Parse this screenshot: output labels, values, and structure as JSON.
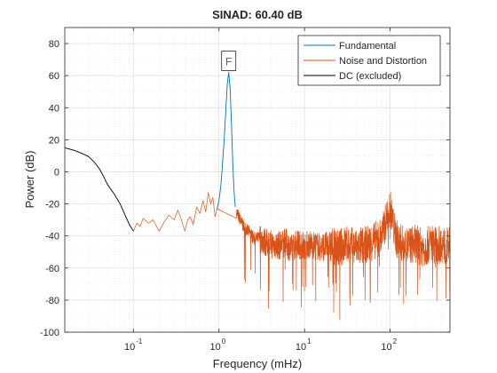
{
  "chart_data": {
    "type": "line",
    "title": "SINAD:  60.40 dB",
    "xlabel": "Frequency (mHz)",
    "ylabel": "Power (dB)",
    "xscale": "log",
    "xlim": [
      0.0158,
      500
    ],
    "ylim": [
      -100,
      90
    ],
    "grid": "on (major and minor)",
    "legend_placement": "top-right",
    "x_ticks": [
      {
        "value": 0.1,
        "base": "10",
        "exp": "-1"
      },
      {
        "value": 1,
        "base": "10",
        "exp": "0"
      },
      {
        "value": 10,
        "base": "10",
        "exp": "1"
      },
      {
        "value": 100,
        "base": "10",
        "exp": "2"
      }
    ],
    "y_ticks": [
      {
        "value": 80,
        "label": "80"
      },
      {
        "value": 60,
        "label": "60"
      },
      {
        "value": 40,
        "label": "40"
      },
      {
        "value": 20,
        "label": "20"
      },
      {
        "value": 0,
        "label": "0"
      },
      {
        "value": -20,
        "label": "-20"
      },
      {
        "value": -40,
        "label": "-40"
      },
      {
        "value": -60,
        "label": "-60"
      },
      {
        "value": -80,
        "label": "-80"
      },
      {
        "value": -100,
        "label": "-100"
      }
    ],
    "series": [
      {
        "name": "Fundamental",
        "color": "#0072BD",
        "x": [
          0.95,
          1.0,
          1.05,
          1.1,
          1.15,
          1.2,
          1.25,
          1.3,
          1.35,
          1.4,
          1.45,
          1.5,
          1.55
        ],
        "y": [
          -23,
          -18,
          -9,
          5,
          20,
          38,
          55,
          62,
          52,
          30,
          5,
          -12,
          -22
        ]
      },
      {
        "name": "Noise and Distortion",
        "color": "#D95319",
        "x": [
          0.1,
          0.11,
          0.12,
          0.13,
          0.15,
          0.17,
          0.2,
          0.23,
          0.26,
          0.3,
          0.33,
          0.36,
          0.4,
          0.43,
          0.46,
          0.5,
          0.55,
          0.6,
          0.65,
          0.7,
          0.75,
          0.8,
          0.85,
          0.9,
          0.95,
          1.6,
          1.8,
          2.0,
          2.3,
          2.6,
          3.0,
          3.5,
          4,
          5,
          6,
          7,
          8,
          10,
          12,
          15,
          20,
          25,
          30,
          40,
          50,
          60,
          70,
          80,
          90,
          100,
          110,
          120,
          140,
          160,
          200,
          250,
          300,
          350,
          400,
          450,
          500
        ],
        "y": [
          -37,
          -32,
          -34,
          -29,
          -32,
          -30,
          -37,
          -31,
          -27,
          -30,
          -24,
          -29,
          -37,
          -30,
          -28,
          -33,
          -22,
          -26,
          -18,
          -25,
          -13,
          -20,
          -16,
          -28,
          -23,
          -25,
          -31,
          -35,
          -38,
          -42,
          -41,
          -44,
          -45,
          -46,
          -44,
          -48,
          -45,
          -46,
          -45,
          -47,
          -46,
          -48,
          -45,
          -47,
          -46,
          -44,
          -42,
          -40,
          -30,
          -22,
          -35,
          -42,
          -45,
          -46,
          -45,
          -48,
          -44,
          -46,
          -45,
          -47,
          -46
        ]
      },
      {
        "name": "DC (excluded)",
        "color": "#000000",
        "x": [
          0.0158,
          0.02,
          0.025,
          0.03,
          0.035,
          0.04,
          0.045,
          0.05,
          0.06,
          0.07,
          0.08,
          0.09,
          0.1
        ],
        "y": [
          15,
          13.5,
          11.5,
          9.5,
          6,
          2,
          -3,
          -8,
          -14,
          -20,
          -27,
          -33,
          -37
        ]
      }
    ],
    "annotations": [
      {
        "text": "F",
        "x": 1.3,
        "y": 62
      }
    ]
  }
}
